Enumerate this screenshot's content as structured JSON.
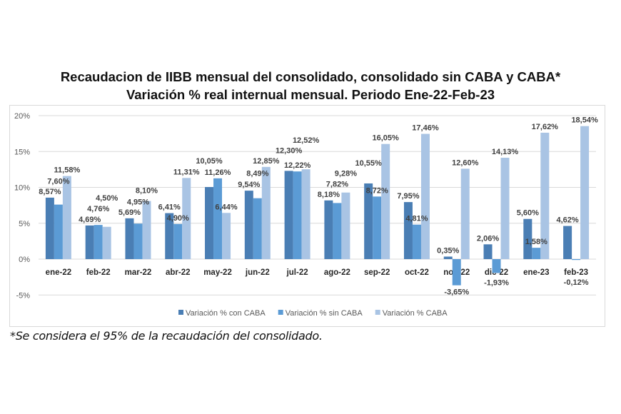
{
  "title_line1": "Recaudacion de IIBB mensual del consolidado, consolidado sin CABA y CABA*",
  "title_line2": "Variación % real internual mensual. Periodo Ene-22-Feb-23",
  "footnote": "*Se considera el 95% de la recaudación del consolidado.",
  "chart_data": {
    "type": "bar",
    "title": "Recaudacion de IIBB mensual del consolidado, consolidado sin CABA y CABA* — Variación % real internual mensual. Periodo Ene-22-Feb-23",
    "categories": [
      "ene-22",
      "feb-22",
      "mar-22",
      "abr-22",
      "may-22",
      "jun-22",
      "jul-22",
      "ago-22",
      "sep-22",
      "oct-22",
      "nov-22",
      "dic-22",
      "ene-23",
      "feb-23"
    ],
    "series": [
      {
        "name": "Variación % con CABA",
        "color": "#4a7eb4",
        "values": [
          8.57,
          4.69,
          5.69,
          6.41,
          10.05,
          9.54,
          12.3,
          8.18,
          10.55,
          7.95,
          0.35,
          2.06,
          5.6,
          4.62
        ],
        "labels": [
          "8,57%",
          "4,69%",
          "5,69%",
          "6,41%",
          "10,05%",
          "9,54%",
          "12,30%",
          "8,18%",
          "10,55%",
          "7,95%",
          "0,35%",
          "2,06%",
          "5,60%",
          "4,62%"
        ]
      },
      {
        "name": "Variación % sin CABA",
        "color": "#5b9bd5",
        "values": [
          7.6,
          4.76,
          4.95,
          4.9,
          11.26,
          8.49,
          12.22,
          7.82,
          8.72,
          4.81,
          -3.65,
          -1.93,
          1.58,
          -0.12
        ],
        "labels": [
          "7,60%",
          "4,76%",
          "4,95%",
          "4,90%",
          "11,26%",
          "8,49%",
          "12,22%",
          "7,82%",
          "8,72%",
          "4,81%",
          "-3,65%",
          "-1,93%",
          "1,58%",
          "-0,12%"
        ]
      },
      {
        "name": "Variación % CABA",
        "color": "#a9c4e4",
        "values": [
          11.58,
          4.5,
          8.1,
          11.31,
          6.44,
          12.85,
          12.52,
          9.28,
          16.05,
          17.46,
          12.6,
          14.13,
          17.62,
          18.54
        ],
        "labels": [
          "11,58%",
          "4,50%",
          "8,10%",
          "11,31%",
          "6,44%",
          "12,85%",
          "12,52%",
          "9,28%",
          "16,05%",
          "17,46%",
          "12,60%",
          "14,13%",
          "17,62%",
          "18,54%"
        ]
      }
    ],
    "yticks": [
      "20%",
      "15%",
      "10%",
      "5%",
      "0%",
      "-5%"
    ],
    "ytick_values": [
      20,
      15,
      10,
      5,
      0,
      -5
    ],
    "ylim": [
      -5,
      20
    ],
    "grid": true,
    "legend": "bottom"
  }
}
